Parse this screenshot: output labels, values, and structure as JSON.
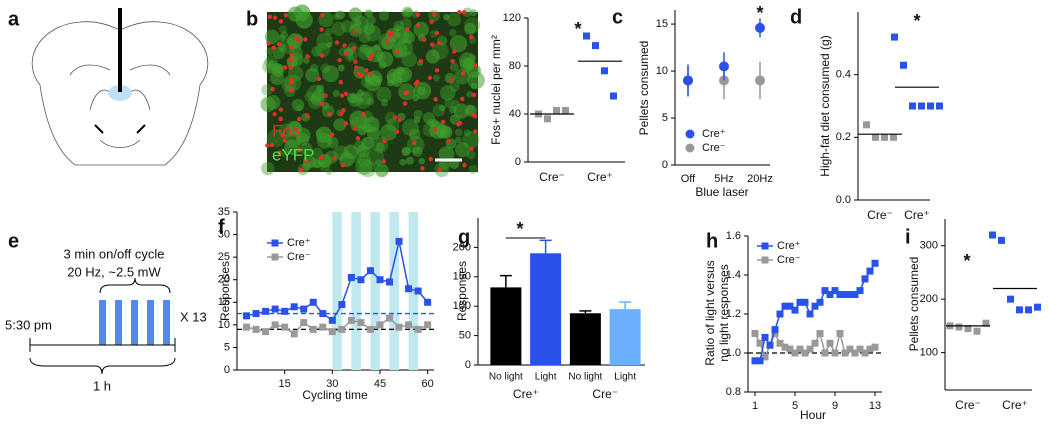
{
  "panel_labels": [
    "a",
    "b",
    "c",
    "d",
    "e",
    "f",
    "g",
    "h",
    "i"
  ],
  "image_b": {
    "labels": [
      "Fos",
      "eYFP"
    ]
  },
  "diagram_e": {
    "cycle": "3 min on/off cycle",
    "params": "20 Hz, ~2.5 mW",
    "repeat": "X 13",
    "start": "5:30 pm",
    "duration": "1 h"
  },
  "chart_data": [
    {
      "type": "dot",
      "ylabel": "Fos+ nuclei per mm²",
      "categories": [
        "Cre⁻",
        "Cre⁺"
      ],
      "colors": [
        "#999999",
        "#2a52e8"
      ],
      "values": [
        [
          40,
          36,
          43,
          43
        ],
        [
          105,
          97,
          76,
          55
        ]
      ],
      "means": [
        40,
        84
      ],
      "ylim": [
        0,
        120
      ],
      "yticks": [
        0,
        40,
        80,
        120
      ],
      "annotation": "*"
    },
    {
      "type": "line",
      "ylabel": "Pellets consumed",
      "xlabel": "Blue laser",
      "categories": [
        "Off",
        "5Hz",
        "20Hz"
      ],
      "series": [
        {
          "name": "Cre⁺",
          "color": "#2a52e8",
          "values": [
            9,
            10.5,
            14.6
          ],
          "errors": [
            1.7,
            1.5,
            1
          ]
        },
        {
          "name": "Cre⁻",
          "color": "#999999",
          "values": [
            9,
            9,
            9
          ],
          "errors": [
            1.5,
            2,
            2
          ]
        }
      ],
      "ylim": [
        0,
        16.5
      ],
      "yticks": [
        0,
        5,
        10,
        15
      ],
      "annotation": "*"
    },
    {
      "type": "dot",
      "ylabel": "High-fat diet consumed (g)",
      "categories": [
        "Cre⁻",
        "Cre⁺"
      ],
      "colors": [
        "#999999",
        "#2a52e8"
      ],
      "values": [
        [
          0.24,
          0.2,
          0.2,
          0.2
        ],
        [
          0.52,
          0.43,
          0.3,
          0.3,
          0.3,
          0.3
        ]
      ],
      "means": [
        0.21,
        0.36
      ],
      "ylim": [
        0,
        0.6
      ],
      "yticks": [
        {
          "value": 0,
          "label": "0.0"
        },
        0.2,
        0.4
      ],
      "annotation": "*"
    },
    {
      "type": "line",
      "ylabel": "Responses",
      "xlabel": "Cycling time",
      "x": [
        3,
        6,
        9,
        12,
        15,
        18,
        21,
        24,
        27,
        30,
        33,
        36,
        39,
        42,
        45,
        48,
        51,
        54,
        57,
        60
      ],
      "series": [
        {
          "name": "Cre⁺",
          "color": "#2a52e8",
          "values": [
            12,
            12.5,
            13,
            13.5,
            13,
            14,
            13.5,
            15,
            12.5,
            11,
            14.5,
            20.5,
            20,
            22,
            20,
            19.5,
            28.5,
            18,
            17.5,
            15
          ]
        },
        {
          "name": "Cre⁻",
          "color": "#999999",
          "values": [
            9.5,
            9,
            8.5,
            10,
            9.5,
            8,
            10.5,
            9,
            9.5,
            8.5,
            9,
            11,
            10.5,
            9,
            10,
            11.5,
            9.5,
            10,
            9,
            10
          ]
        }
      ],
      "reference_lines": [
        {
          "value": 12.5,
          "color": "#2a52e8"
        },
        {
          "value": 9,
          "color": "#000000"
        }
      ],
      "light_on": [
        [
          30,
          33
        ],
        [
          36,
          39
        ],
        [
          42,
          45
        ],
        [
          48,
          51
        ],
        [
          54,
          57
        ]
      ],
      "xlim": [
        0,
        62
      ],
      "xticks": [
        15,
        30,
        45,
        60
      ],
      "ylim": [
        0,
        35
      ],
      "yticks": [
        0,
        5,
        10,
        15,
        20,
        25,
        30,
        35
      ]
    },
    {
      "type": "bar",
      "ylabel": "Responses",
      "categories": [
        "No light",
        "Light",
        "No light",
        "Light"
      ],
      "groups": [
        "Cre⁺",
        "Cre⁻"
      ],
      "values": [
        132,
        190,
        88,
        95
      ],
      "errors": [
        20,
        22,
        4,
        12
      ],
      "colors": [
        "#000000",
        "#2a52e8",
        "#000000",
        "#6ab0ff"
      ],
      "ylim": [
        0,
        250
      ],
      "yticks": [
        0,
        50,
        100,
        150,
        200
      ],
      "annotation": "*"
    },
    {
      "type": "line",
      "ylabel": [
        "Ratio of light versus",
        "no light responses"
      ],
      "xlabel": "Hour",
      "x": [
        1,
        1.5,
        2,
        2.5,
        3,
        3.5,
        4,
        4.5,
        5,
        5.5,
        6,
        6.5,
        7,
        7.5,
        8,
        8.5,
        9,
        9.5,
        10,
        10.5,
        11,
        11.5,
        12,
        12.5,
        13
      ],
      "series": [
        {
          "name": "Cre⁺",
          "color": "#2a52e8",
          "values": [
            0.96,
            0.96,
            1.08,
            1.04,
            1.12,
            1.2,
            1.24,
            1.24,
            1.22,
            1.26,
            1.26,
            1.2,
            1.24,
            1.26,
            1.32,
            1.3,
            1.32,
            1.3,
            1.3,
            1.3,
            1.3,
            1.32,
            1.38,
            1.42,
            1.46
          ]
        },
        {
          "name": "Cre⁻",
          "color": "#999999",
          "values": [
            1.1,
            1.05,
            0.98,
            1.04,
            1.1,
            1.05,
            1.03,
            1.02,
            1.0,
            1.02,
            1.0,
            1.02,
            1.05,
            1.1,
            1.0,
            1.05,
            1.0,
            1.1,
            1.0,
            1.02,
            1.0,
            1.02,
            1.0,
            1.02,
            1.03
          ]
        }
      ],
      "reference_lines": [
        {
          "value": 1,
          "color": "#000000"
        }
      ],
      "xlim": [
        0.3,
        13.7
      ],
      "xticks": [
        1,
        5,
        9,
        13
      ],
      "ylim": [
        0.8,
        1.6
      ],
      "yticks": [
        0.8,
        {
          "value": 1,
          "label": "1.0"
        },
        1.2,
        1.4,
        1.6
      ]
    },
    {
      "type": "dot",
      "ylabel": "Pellets consumed",
      "categories": [
        "Cre⁻",
        "Cre⁺"
      ],
      "colors": [
        "#999999",
        "#2a52e8"
      ],
      "values": [
        [
          150,
          148,
          145,
          140,
          155
        ],
        [
          320,
          310,
          200,
          180,
          180,
          185
        ]
      ],
      "means": [
        150,
        220
      ],
      "ylim": [
        30,
        350
      ],
      "yticks": [
        100,
        200,
        300
      ],
      "annotation": "*"
    }
  ]
}
